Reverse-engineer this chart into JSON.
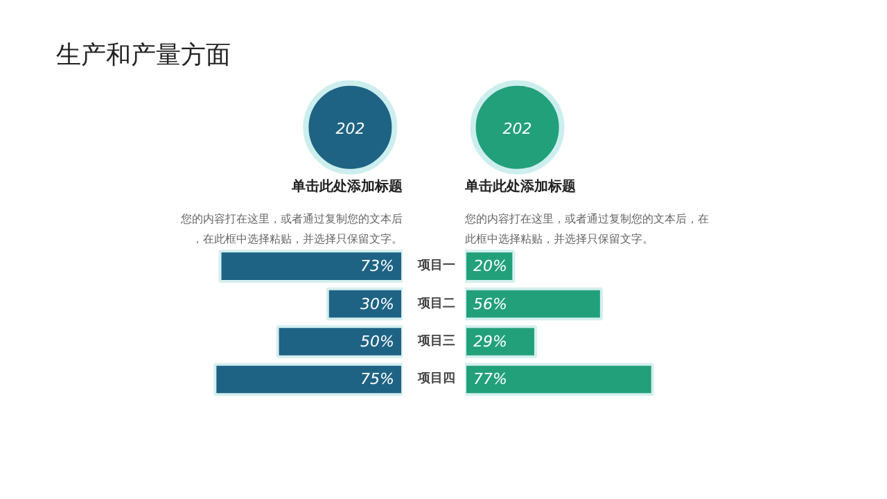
{
  "chart_data": [
    {
      "type": "bar",
      "orientation": "horizontal",
      "title": "生产和产量方面",
      "categories": [
        "项目一",
        "项目二",
        "项目三",
        "项目四"
      ],
      "values": [
        73,
        30,
        50,
        75
      ],
      "value_labels": [
        "73%",
        "30%",
        "50%",
        "75%"
      ],
      "color": "#1e6384",
      "tick_labels": "y",
      "annotations": [
        "202",
        "单击此处添加标题",
        "您的内容打在这里，或者通过复制您的文本后，在此框中选择粘贴，并选择只保留文字。"
      ]
    },
    {
      "type": "bar",
      "orientation": "horizontal",
      "categories": [
        null,
        null,
        null,
        null
      ],
      "values": [
        20,
        56,
        29,
        77
      ],
      "value_labels": [
        "20%",
        "56%",
        "29%",
        "77%"
      ],
      "color": "#22a07a",
      "tick_labels": false,
      "annotations": [
        "202",
        "单击此处添加标题",
        "您的内容打在这里，或者通过复制您的文本后，在此框中选择粘贴，并选择只保留文字。"
      ]
    }
  ]
}
